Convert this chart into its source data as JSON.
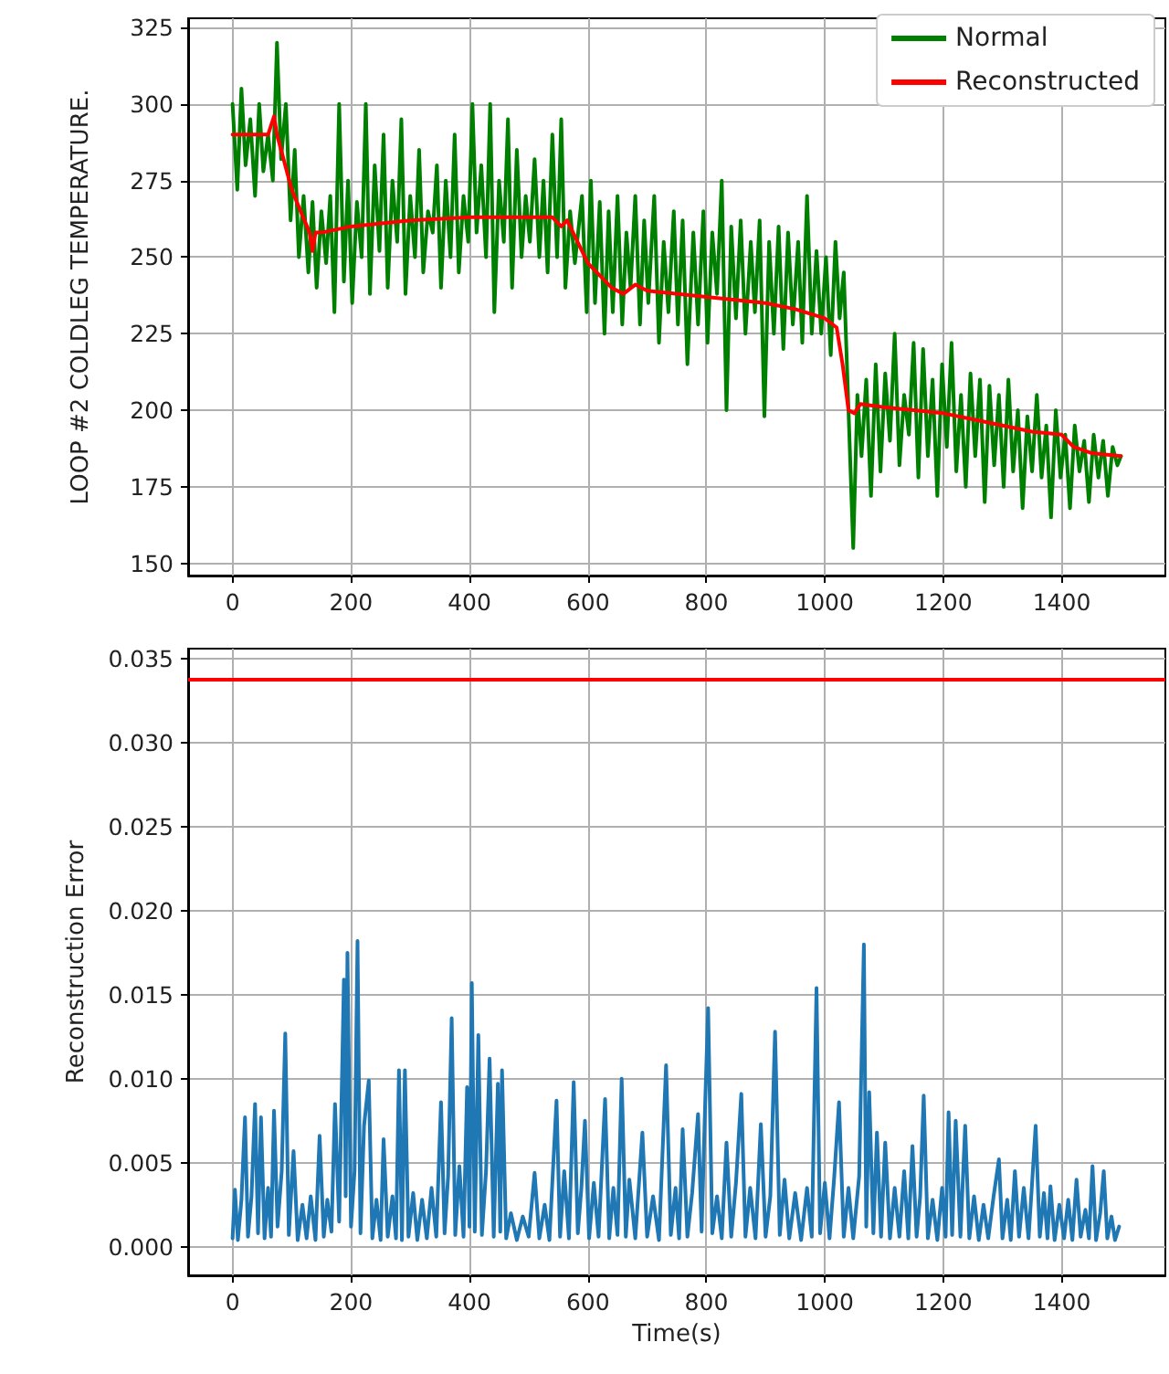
{
  "chart_data": [
    {
      "type": "line",
      "ylabel": "LOOP #2 COLDLEG TEMPERATURE.",
      "xlim": [
        -75,
        1575
      ],
      "xticks": [
        0,
        200,
        400,
        600,
        800,
        1000,
        1200,
        1400
      ],
      "ylim": [
        146,
        328
      ],
      "yticks": [
        150,
        175,
        200,
        225,
        250,
        275,
        300,
        325
      ],
      "grid": true,
      "legend": "top right",
      "marker": "none",
      "line_style": "solid",
      "series": [
        {
          "name": "Normal",
          "color": "#008000",
          "x": [
            0,
            8,
            15,
            22,
            30,
            38,
            45,
            52,
            60,
            68,
            75,
            82,
            90,
            98,
            105,
            112,
            120,
            128,
            135,
            142,
            150,
            158,
            165,
            172,
            180,
            188,
            195,
            202,
            210,
            218,
            225,
            232,
            240,
            248,
            255,
            262,
            270,
            278,
            285,
            292,
            300,
            308,
            315,
            322,
            330,
            338,
            345,
            352,
            360,
            368,
            375,
            382,
            390,
            398,
            405,
            412,
            420,
            428,
            435,
            442,
            450,
            458,
            465,
            472,
            480,
            488,
            495,
            502,
            510,
            518,
            525,
            532,
            540,
            548,
            555,
            562,
            570,
            578,
            590,
            598,
            605,
            612,
            620,
            628,
            635,
            642,
            650,
            658,
            665,
            672,
            680,
            688,
            695,
            702,
            712,
            720,
            728,
            736,
            745,
            752,
            760,
            768,
            778,
            786,
            795,
            802,
            810,
            818,
            826,
            834,
            842,
            850,
            858,
            866,
            875,
            882,
            890,
            898,
            906,
            914,
            922,
            930,
            938,
            946,
            955,
            962,
            970,
            978,
            986,
            994,
            1002,
            1010,
            1018,
            1025,
            1032,
            1040,
            1048,
            1055,
            1062,
            1070,
            1078,
            1086,
            1094,
            1102,
            1110,
            1118,
            1126,
            1134,
            1142,
            1150,
            1158,
            1166,
            1174,
            1182,
            1190,
            1198,
            1206,
            1214,
            1222,
            1230,
            1238,
            1246,
            1254,
            1262,
            1270,
            1278,
            1286,
            1294,
            1302,
            1310,
            1318,
            1326,
            1334,
            1342,
            1350,
            1358,
            1366,
            1374,
            1382,
            1390,
            1398,
            1406,
            1414,
            1422,
            1430,
            1438,
            1446,
            1454,
            1462,
            1470,
            1478,
            1486,
            1494,
            1500
          ],
          "values": [
            300,
            272,
            305,
            280,
            295,
            270,
            300,
            278,
            290,
            275,
            320,
            282,
            300,
            262,
            285,
            250,
            270,
            245,
            268,
            240,
            265,
            248,
            270,
            232,
            300,
            242,
            275,
            235,
            268,
            250,
            300,
            238,
            280,
            252,
            290,
            240,
            275,
            255,
            295,
            238,
            270,
            250,
            285,
            245,
            265,
            258,
            280,
            240,
            275,
            250,
            290,
            245,
            270,
            255,
            300,
            258,
            280,
            250,
            300,
            232,
            275,
            255,
            295,
            240,
            285,
            250,
            270,
            255,
            282,
            250,
            275,
            245,
            290,
            250,
            295,
            240,
            265,
            248,
            270,
            232,
            275,
            235,
            268,
            225,
            265,
            232,
            270,
            228,
            258,
            240,
            270,
            228,
            262,
            235,
            270,
            222,
            255,
            232,
            265,
            228,
            262,
            215,
            258,
            228,
            265,
            222,
            258,
            238,
            275,
            200,
            260,
            230,
            262,
            225,
            255,
            232,
            262,
            198,
            255,
            225,
            260,
            220,
            258,
            228,
            255,
            222,
            270,
            225,
            252,
            225,
            250,
            218,
            255,
            230,
            245,
            200,
            155,
            205,
            185,
            210,
            172,
            215,
            180,
            212,
            190,
            225,
            182,
            205,
            192,
            222,
            178,
            220,
            185,
            210,
            172,
            215,
            188,
            222,
            180,
            205,
            175,
            212,
            185,
            210,
            170,
            208,
            182,
            205,
            175,
            210,
            180,
            200,
            168,
            198,
            180,
            205,
            178,
            195,
            165,
            200,
            178,
            192,
            168,
            195,
            180,
            190,
            170,
            192,
            178,
            190,
            172,
            188,
            182,
            185
          ]
        },
        {
          "name": "Reconstructed",
          "color": "#ff0000",
          "x": [
            0,
            60,
            70,
            75,
            100,
            130,
            135,
            140,
            150,
            200,
            300,
            400,
            500,
            540,
            555,
            565,
            570,
            600,
            640,
            660,
            680,
            700,
            800,
            900,
            950,
            1000,
            1020,
            1030,
            1040,
            1050,
            1060,
            1100,
            1150,
            1200,
            1250,
            1300,
            1350,
            1400,
            1420,
            1450,
            1500
          ],
          "values": [
            290,
            290,
            296,
            290,
            272,
            258,
            252,
            258,
            258,
            260,
            262,
            263,
            263,
            263,
            260,
            262,
            260,
            248,
            240,
            238,
            241,
            239,
            237,
            235,
            233,
            230,
            227,
            215,
            200,
            199,
            202,
            201,
            200,
            199,
            197,
            195,
            193,
            192,
            188,
            186,
            185
          ]
        }
      ]
    },
    {
      "type": "line",
      "xlabel": "Time(s)",
      "ylabel": "Reconstruction Error",
      "xlim": [
        -75,
        1575
      ],
      "xticks": [
        0,
        200,
        400,
        600,
        800,
        1000,
        1200,
        1400
      ],
      "ylim": [
        -0.0017,
        0.0356
      ],
      "yticks": [
        {
          "value": 0,
          "label": "0.000"
        },
        {
          "value": 0.005,
          "label": "0.005"
        },
        {
          "value": 0.01,
          "label": "0.010"
        },
        {
          "value": 0.015,
          "label": "0.015"
        },
        {
          "value": 0.02,
          "label": "0.020"
        },
        {
          "value": 0.025,
          "label": "0.025"
        },
        {
          "value": 0.03,
          "label": "0.030"
        },
        {
          "value": 0.035,
          "label": "0.035"
        }
      ],
      "grid": true,
      "marker": "none",
      "line_style": "solid",
      "ref_lines": [
        {
          "axis": "y",
          "value": 0.0338,
          "color": "#ff0000"
        }
      ],
      "series": [
        {
          "color": "#1f77b4",
          "x": [
            0,
            4,
            9,
            15,
            21,
            26,
            32,
            38,
            43,
            48,
            54,
            60,
            65,
            70,
            76,
            83,
            89,
            95,
            103,
            110,
            118,
            125,
            132,
            140,
            147,
            154,
            160,
            167,
            173,
            180,
            188,
            191,
            194,
            200,
            206,
            211,
            216,
            222,
            230,
            236,
            243,
            250,
            255,
            262,
            270,
            276,
            281,
            286,
            291,
            297,
            305,
            312,
            320,
            328,
            336,
            344,
            352,
            358,
            364,
            370,
            376,
            383,
            390,
            396,
            400,
            404,
            409,
            415,
            421,
            428,
            434,
            441,
            448,
            452,
            455,
            462,
            470,
            480,
            490,
            500,
            510,
            518,
            527,
            535,
            547,
            553,
            560,
            568,
            576,
            583,
            589,
            595,
            602,
            610,
            618,
            629,
            636,
            643,
            650,
            657,
            664,
            670,
            680,
            692,
            700,
            710,
            720,
            732,
            740,
            748,
            754,
            760,
            768,
            776,
            786,
            792,
            798,
            803,
            810,
            818,
            826,
            834,
            842,
            850,
            859,
            866,
            874,
            883,
            892,
            900,
            908,
            916,
            924,
            932,
            940,
            950,
            960,
            970,
            978,
            986,
            992,
            1000,
            1008,
            1016,
            1024,
            1032,
            1040,
            1048,
            1058,
            1066,
            1070,
            1075,
            1082,
            1088,
            1095,
            1102,
            1110,
            1118,
            1126,
            1134,
            1141,
            1148,
            1155,
            1161,
            1167,
            1174,
            1182,
            1190,
            1198,
            1204,
            1209,
            1215,
            1221,
            1229,
            1237,
            1244,
            1252,
            1260,
            1268,
            1276,
            1285,
            1294,
            1300,
            1308,
            1314,
            1321,
            1328,
            1336,
            1344,
            1350,
            1356,
            1363,
            1370,
            1376,
            1381,
            1388,
            1396,
            1404,
            1411,
            1418,
            1425,
            1432,
            1440,
            1446,
            1452,
            1458,
            1465,
            1471,
            1477,
            1484,
            1490,
            1497
          ],
          "values": [
            0.0005,
            0.0034,
            0.0004,
            0.0028,
            0.0077,
            0.0006,
            0.003,
            0.0085,
            0.0008,
            0.0077,
            0.0005,
            0.0035,
            0.0006,
            0.0081,
            0.0012,
            0.0045,
            0.0127,
            0.0007,
            0.0057,
            0.0004,
            0.0025,
            0.0005,
            0.003,
            0.0004,
            0.0066,
            0.0006,
            0.0028,
            0.0009,
            0.0085,
            0.0015,
            0.0159,
            0.003,
            0.0175,
            0.0012,
            0.0045,
            0.0182,
            0.0008,
            0.0072,
            0.0099,
            0.0005,
            0.0028,
            0.0004,
            0.0064,
            0.0006,
            0.003,
            0.0005,
            0.0105,
            0.0004,
            0.0105,
            0.0006,
            0.0032,
            0.0004,
            0.0028,
            0.0005,
            0.0035,
            0.0006,
            0.0086,
            0.0008,
            0.0042,
            0.0136,
            0.0007,
            0.0048,
            0.0006,
            0.0095,
            0.0012,
            0.0157,
            0.0009,
            0.0126,
            0.0007,
            0.0045,
            0.0112,
            0.0006,
            0.0097,
            0.0009,
            0.0105,
            0.0005,
            0.002,
            0.0004,
            0.0018,
            0.0006,
            0.0044,
            0.0005,
            0.0025,
            0.0004,
            0.0087,
            0.0006,
            0.0045,
            0.0005,
            0.0098,
            0.0008,
            0.0035,
            0.0075,
            0.0005,
            0.0038,
            0.0006,
            0.0088,
            0.0005,
            0.0035,
            0.0007,
            0.01,
            0.0006,
            0.004,
            0.0005,
            0.0068,
            0.0006,
            0.003,
            0.0004,
            0.0108,
            0.0007,
            0.0035,
            0.0005,
            0.007,
            0.0006,
            0.0032,
            0.0079,
            0.0009,
            0.0085,
            0.0142,
            0.0008,
            0.003,
            0.0005,
            0.0062,
            0.0006,
            0.0038,
            0.0091,
            0.0006,
            0.0035,
            0.0005,
            0.0073,
            0.0006,
            0.003,
            0.0128,
            0.0007,
            0.004,
            0.0005,
            0.0032,
            0.0004,
            0.0035,
            0.0006,
            0.0154,
            0.0008,
            0.0038,
            0.0005,
            0.0042,
            0.0086,
            0.0006,
            0.0035,
            0.0005,
            0.0042,
            0.018,
            0.0012,
            0.0092,
            0.0008,
            0.0068,
            0.0006,
            0.0062,
            0.0005,
            0.0035,
            0.0006,
            0.0045,
            0.0005,
            0.006,
            0.0006,
            0.003,
            0.009,
            0.0005,
            0.0028,
            0.0004,
            0.0035,
            0.0006,
            0.008,
            0.0007,
            0.0075,
            0.0006,
            0.0072,
            0.0005,
            0.003,
            0.0004,
            0.0025,
            0.0005,
            0.003,
            0.0052,
            0.0005,
            0.0028,
            0.0004,
            0.0045,
            0.0006,
            0.0035,
            0.0005,
            0.0038,
            0.0072,
            0.0006,
            0.0032,
            0.0005,
            0.0036,
            0.0004,
            0.0025,
            0.0005,
            0.0028,
            0.0004,
            0.004,
            0.0006,
            0.0022,
            0.0005,
            0.0048,
            0.0004,
            0.002,
            0.0045,
            0.0005,
            0.0018,
            0.0004,
            0.0012
          ]
        }
      ]
    }
  ]
}
